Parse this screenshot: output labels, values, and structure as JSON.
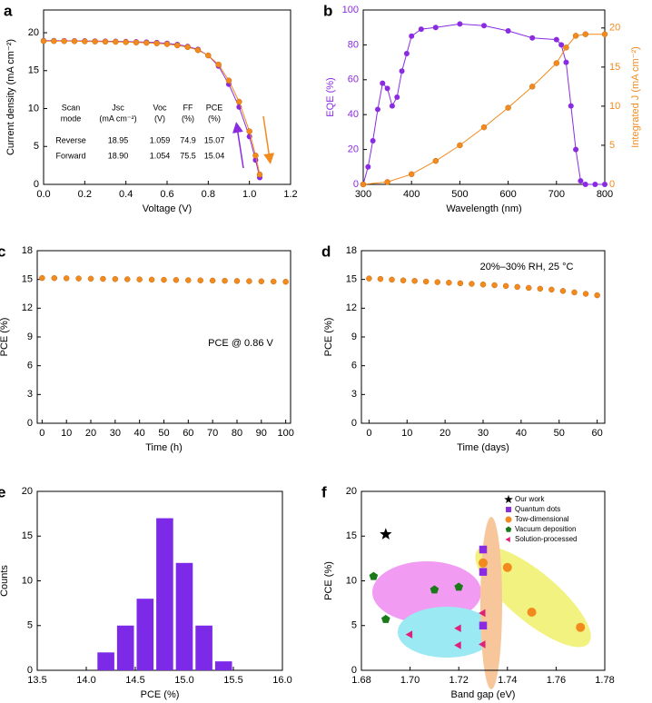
{
  "chart_data": [
    {
      "label": "a",
      "type": "line",
      "xlabel": "Voltage (V)",
      "ylabel": "Current density (mA cm⁻²)",
      "xlim": [
        0,
        1.2
      ],
      "xticks": [
        {
          "value": 0,
          "label": "0.0"
        },
        0.2,
        0.4,
        0.6,
        0.8,
        {
          "value": 1,
          "label": "1.0"
        },
        1.2
      ],
      "ylim": [
        0,
        23
      ],
      "yticks": [
        0,
        5,
        10,
        15,
        20
      ],
      "x": [
        0,
        0.05,
        0.1,
        0.15,
        0.2,
        0.25,
        0.3,
        0.35,
        0.4,
        0.45,
        0.5,
        0.55,
        0.6,
        0.65,
        0.7,
        0.75,
        0.8,
        0.85,
        0.9,
        0.95,
        1.0,
        1.03,
        1.05
      ],
      "series": [
        {
          "name": "Reverse",
          "color": "#8a2be2",
          "values": [
            18.95,
            18.95,
            18.94,
            18.93,
            18.92,
            18.9,
            18.88,
            18.86,
            18.83,
            18.8,
            18.76,
            18.7,
            18.6,
            18.45,
            18.2,
            17.8,
            17.0,
            15.6,
            13.2,
            10.2,
            6.3,
            3.2,
            0.9
          ]
        },
        {
          "name": "Forward",
          "color": "#f28a1e",
          "values": [
            18.9,
            18.9,
            18.89,
            18.88,
            18.86,
            18.84,
            18.82,
            18.8,
            18.76,
            18.72,
            18.67,
            18.6,
            18.5,
            18.33,
            18.1,
            17.7,
            17.0,
            15.8,
            13.7,
            10.9,
            7.0,
            3.8,
            1.3
          ]
        }
      ],
      "table": {
        "header": [
          [
            "Scan",
            "mode"
          ],
          [
            "Jsc",
            "(mA cm⁻²)"
          ],
          [
            "Voc",
            "(V)"
          ],
          [
            "FF",
            "(%)"
          ],
          [
            "PCE",
            "(%)"
          ]
        ],
        "rows": [
          [
            "18.95",
            "1.059",
            "74.9",
            "15.07"
          ],
          [
            "18.90",
            "1.054",
            "75.5",
            "15.04"
          ]
        ]
      }
    },
    {
      "label": "b",
      "type": "line",
      "xlabel": "Wavelength (nm)",
      "ylabel": "EQE (%)",
      "y2label": "Integrated J (mA cm⁻²)",
      "xlim": [
        300,
        800
      ],
      "xticks": [
        300,
        400,
        500,
        600,
        700,
        800
      ],
      "ylim": [
        0,
        100
      ],
      "yticks": [
        0,
        20,
        40,
        60,
        80,
        100
      ],
      "y2lim": [
        0,
        22.3
      ],
      "y2ticks": [
        0,
        5,
        10,
        15,
        20
      ],
      "series": [
        {
          "color": "#8a2be2",
          "x": [
            300,
            310,
            320,
            330,
            340,
            350,
            360,
            370,
            380,
            390,
            400,
            420,
            450,
            500,
            550,
            600,
            650,
            700,
            710,
            720,
            730,
            740,
            750,
            760,
            780,
            800
          ],
          "values": [
            0,
            10,
            25,
            43,
            58,
            55,
            45,
            50,
            65,
            75,
            85,
            89,
            90,
            92,
            91,
            88,
            84,
            83,
            80,
            70,
            45,
            20,
            2,
            0,
            0,
            0
          ]
        },
        {
          "color": "#f28a1e",
          "axis": "y2",
          "x": [
            300,
            350,
            400,
            450,
            500,
            550,
            600,
            650,
            700,
            720,
            740,
            760,
            800
          ],
          "values": [
            0,
            0.3,
            1.3,
            3,
            5,
            7.3,
            9.8,
            12.5,
            15.5,
            17.5,
            19,
            19.2,
            19.2
          ]
        }
      ]
    },
    {
      "label": "c",
      "type": "line",
      "xlabel": "Time (h)",
      "ylabel": "PCE (%)",
      "annotation": "PCE @ 0.86 V",
      "xlim": [
        -2,
        102
      ],
      "xticks": [
        0,
        10,
        20,
        30,
        40,
        50,
        60,
        70,
        80,
        90,
        100
      ],
      "ylim": [
        0,
        18
      ],
      "yticks": [
        0,
        3,
        6,
        9,
        12,
        15,
        18
      ],
      "x": [
        0,
        5,
        10,
        15,
        20,
        25,
        30,
        35,
        40,
        45,
        50,
        55,
        60,
        65,
        70,
        75,
        80,
        85,
        90,
        95,
        100
      ],
      "series": [
        {
          "color": "#f28a1e",
          "values": [
            15.15,
            15.14,
            15.12,
            15.1,
            15.08,
            15.06,
            15.04,
            15.02,
            15.0,
            14.98,
            14.96,
            14.94,
            14.92,
            14.9,
            14.88,
            14.86,
            14.84,
            14.82,
            14.8,
            14.78,
            14.76
          ]
        }
      ]
    },
    {
      "label": "d",
      "type": "line",
      "xlabel": "Time (days)",
      "ylabel": "PCE (%)",
      "annotation": "20%–30% RH, 25 °C",
      "xlim": [
        -2,
        62
      ],
      "xticks": [
        0,
        10,
        20,
        30,
        40,
        50,
        60
      ],
      "ylim": [
        0,
        18
      ],
      "yticks": [
        0,
        3,
        6,
        9,
        12,
        15,
        18
      ],
      "x": [
        0,
        3,
        6,
        9,
        12,
        15,
        18,
        21,
        24,
        27,
        30,
        33,
        36,
        39,
        42,
        45,
        48,
        51,
        54,
        57,
        60
      ],
      "series": [
        {
          "color": "#f28a1e",
          "values": [
            15.1,
            15.05,
            14.98,
            14.9,
            14.85,
            14.78,
            14.72,
            14.66,
            14.6,
            14.54,
            14.47,
            14.4,
            14.32,
            14.22,
            14.12,
            14.03,
            13.94,
            13.8,
            13.65,
            13.5,
            13.35
          ]
        }
      ]
    },
    {
      "label": "e",
      "type": "histogram",
      "xlabel": "PCE (%)",
      "ylabel": "Counts",
      "color": "#7d2ae8",
      "xlim": [
        13.5,
        16
      ],
      "xticks": [
        13.5,
        {
          "value": 14,
          "label": "14.0"
        },
        14.5,
        {
          "value": 15,
          "label": "15.0"
        },
        15.5,
        {
          "value": 16,
          "label": "16.0"
        }
      ],
      "ylim": [
        0,
        20
      ],
      "yticks": [
        0,
        5,
        10,
        15,
        20
      ],
      "bins": [
        14.1,
        14.3,
        14.5,
        14.7,
        14.9,
        15.1,
        15.3,
        15.5
      ],
      "values": [
        2,
        5,
        8,
        17,
        12,
        5,
        1
      ]
    },
    {
      "label": "f",
      "type": "scatter",
      "xlabel": "Band gap (eV)",
      "ylabel": "PCE (%)",
      "xlim": [
        1.68,
        1.78
      ],
      "xticks": [
        1.68,
        {
          "value": 1.7,
          "label": "1.70"
        },
        1.72,
        1.74,
        1.76,
        1.78
      ],
      "ylim": [
        0,
        20
      ],
      "yticks": [
        0,
        5,
        10,
        15,
        20
      ],
      "series": [
        {
          "name": "Our work",
          "marker": "star",
          "color": "#000000",
          "x": [
            1.69
          ],
          "values": [
            15.2
          ]
        },
        {
          "name": "Quantum dots",
          "marker": "square",
          "color": "#8a2be2",
          "x": [
            1.73,
            1.73,
            1.73
          ],
          "values": [
            13.5,
            11,
            5
          ]
        },
        {
          "name": "Tow-dimensional",
          "marker": "circle",
          "color": "#f28a1e",
          "x": [
            1.73,
            1.74,
            1.75,
            1.77
          ],
          "values": [
            12,
            11.5,
            6.5,
            4.8
          ]
        },
        {
          "name": "Vacuum deposition",
          "marker": "pentagon",
          "color": "#1a7a1a",
          "x": [
            1.685,
            1.69,
            1.71,
            1.72
          ],
          "values": [
            10.5,
            5.7,
            9,
            9.3
          ]
        },
        {
          "name": "Solution-processed",
          "marker": "triangle",
          "color": "#e0207a",
          "x": [
            1.7,
            1.72,
            1.72,
            1.73,
            1.73
          ],
          "values": [
            4,
            4.7,
            2.8,
            6.4,
            2.9
          ]
        }
      ]
    }
  ]
}
